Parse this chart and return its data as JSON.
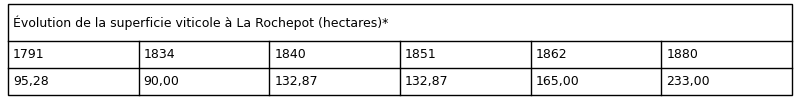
{
  "title": "Évolution de la superficie viticole à La Rochepot (hectares)*",
  "years": [
    "1791",
    "1834",
    "1840",
    "1851",
    "1862",
    "1880"
  ],
  "values": [
    "95,28",
    "90,00",
    "132,87",
    "132,87",
    "165,00",
    "233,00"
  ],
  "background_color": "#ffffff",
  "border_color": "#000000",
  "title_fontsize": 9.0,
  "cell_fontsize": 9.0,
  "fig_width": 8.0,
  "fig_height": 0.99,
  "dpi": 100
}
